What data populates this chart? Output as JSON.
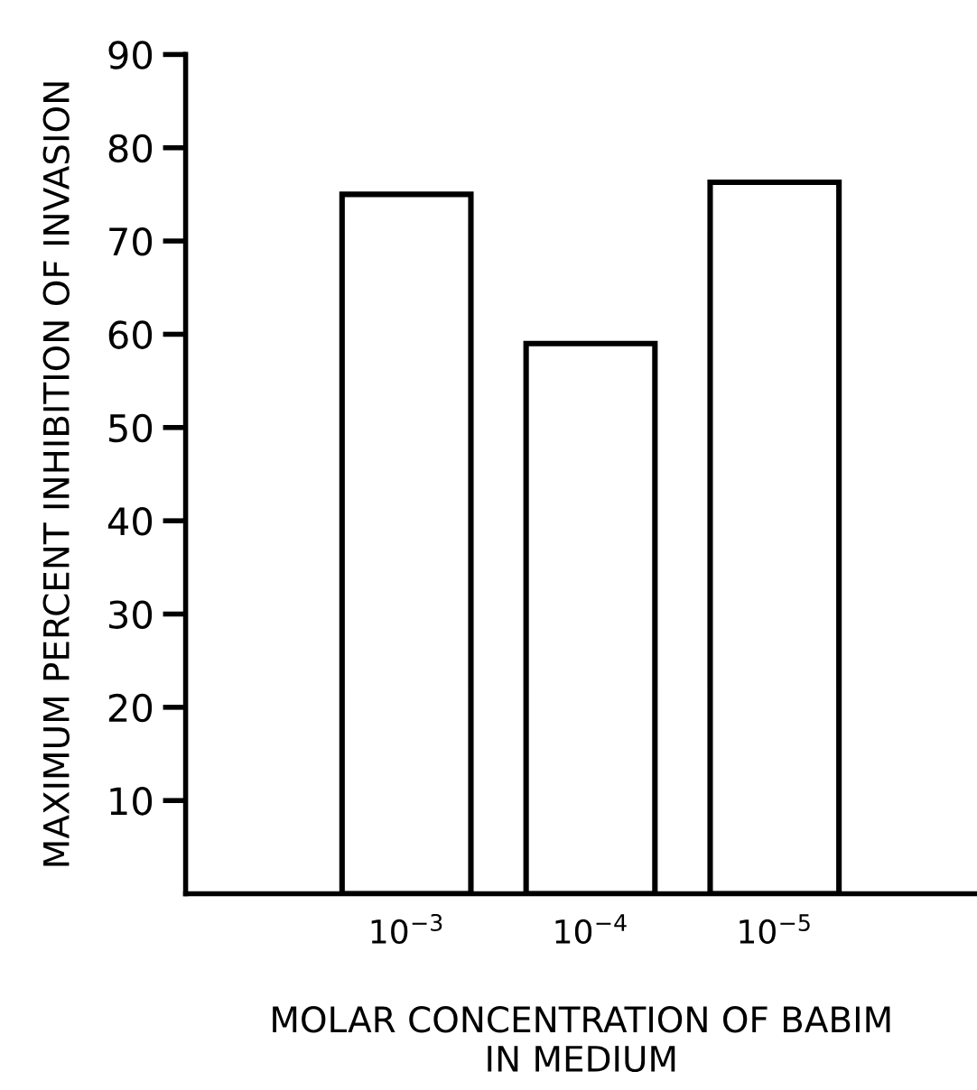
{
  "chart_data": {
    "type": "bar",
    "xlabel": "MOLAR CONCENTRATION OF BABIM\nIN MEDIUM",
    "ylabel": "MAXIMUM PERCENT INHIBITION OF INVASION",
    "categories": [
      "10$^{−3}$",
      "10$^{−4}$",
      "10$^{−5}$"
    ],
    "values": [
      75,
      59,
      76.3
    ],
    "color": "#ffffff",
    "ylim": [
      0,
      90
    ],
    "yticks": [
      10,
      20,
      30,
      40,
      50,
      60,
      70,
      80,
      90
    ],
    "grid": false
  }
}
